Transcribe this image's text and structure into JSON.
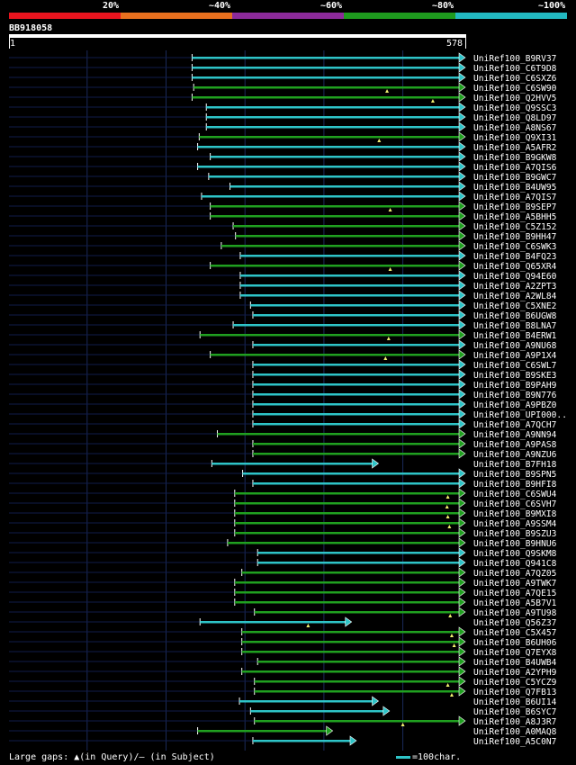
{
  "scale_labels": [
    "20%",
    "~40%",
    "~60%",
    "~80%",
    "~100%"
  ],
  "scale_colors": [
    "#e8141e",
    "#e8701e",
    "#8c2a9a",
    "#1e9a1e",
    "#22b8c0"
  ],
  "colors": {
    "cyan": "#2ec4c8",
    "green": "#20a020",
    "navy": "#101c4a",
    "grid": "#1a2a5a",
    "marker": "#f0f070"
  },
  "query": {
    "name": "BB918058",
    "start": "1",
    "end": "578",
    "length": 578
  },
  "footer": {
    "legend": "Large gaps: ▲(in Query)/— (in Subject)",
    "scale_text": "=100char."
  },
  "chart_data": {
    "type": "alignment",
    "hits": [
      {
        "label": "UniRef100_B9RV37",
        "start": 233,
        "end": 578,
        "color": "cyan",
        "arrow": true
      },
      {
        "label": "UniRef100_C6T9D8",
        "start": 233,
        "end": 578,
        "color": "cyan",
        "arrow": true
      },
      {
        "label": "UniRef100_C6SXZ6",
        "start": 233,
        "end": 578,
        "color": "cyan",
        "arrow": true
      },
      {
        "label": "UniRef100_C6SW90",
        "start": 235,
        "end": 578,
        "color": "green",
        "arrow": true,
        "gap": 480
      },
      {
        "label": "UniRef100_Q2HVV5",
        "start": 233,
        "end": 578,
        "color": "green",
        "arrow": true,
        "gap": 538
      },
      {
        "label": "UniRef100_Q9SSC3",
        "start": 251,
        "end": 578,
        "color": "cyan",
        "arrow": true
      },
      {
        "label": "UniRef100_Q8LD97",
        "start": 251,
        "end": 578,
        "color": "cyan",
        "arrow": true
      },
      {
        "label": "UniRef100_A8NS67",
        "start": 251,
        "end": 578,
        "color": "cyan",
        "arrow": true
      },
      {
        "label": "UniRef100_Q9XI31",
        "start": 242,
        "end": 578,
        "color": "green",
        "arrow": true,
        "gap": 470
      },
      {
        "label": "UniRef100_A5AFR2",
        "start": 240,
        "end": 578,
        "color": "cyan",
        "arrow": true
      },
      {
        "label": "UniRef100_B9GKW8",
        "start": 256,
        "end": 578,
        "color": "cyan",
        "arrow": true
      },
      {
        "label": "UniRef100_A7QIS6",
        "start": 240,
        "end": 578,
        "color": "cyan",
        "arrow": true
      },
      {
        "label": "UniRef100_B9GWC7",
        "start": 254,
        "end": 578,
        "color": "cyan",
        "arrow": true
      },
      {
        "label": "UniRef100_B4UW95",
        "start": 281,
        "end": 578,
        "color": "cyan",
        "arrow": true
      },
      {
        "label": "UniRef100_A7QIS7",
        "start": 245,
        "end": 578,
        "color": "cyan",
        "arrow": true
      },
      {
        "label": "UniRef100_B9SEP7",
        "start": 256,
        "end": 578,
        "color": "green",
        "arrow": true,
        "gap": 484
      },
      {
        "label": "UniRef100_A5BHH5",
        "start": 256,
        "end": 578,
        "color": "green",
        "arrow": true
      },
      {
        "label": "UniRef100_C5Z152",
        "start": 285,
        "end": 578,
        "color": "green",
        "arrow": true
      },
      {
        "label": "UniRef100_B9HH47",
        "start": 288,
        "end": 578,
        "color": "green",
        "arrow": true
      },
      {
        "label": "UniRef100_C6SWK3",
        "start": 270,
        "end": 578,
        "color": "green",
        "arrow": true
      },
      {
        "label": "UniRef100_B4FQ23",
        "start": 294,
        "end": 578,
        "color": "cyan",
        "arrow": true
      },
      {
        "label": "UniRef100_Q65XR4",
        "start": 256,
        "end": 578,
        "color": "green",
        "arrow": true,
        "gap": 484
      },
      {
        "label": "UniRef100_Q94E60",
        "start": 294,
        "end": 578,
        "color": "cyan",
        "arrow": true
      },
      {
        "label": "UniRef100_A2ZPT3",
        "start": 294,
        "end": 578,
        "color": "cyan",
        "arrow": true
      },
      {
        "label": "UniRef100_A2WL84",
        "start": 294,
        "end": 578,
        "color": "cyan",
        "arrow": true
      },
      {
        "label": "UniRef100_C5XNE2",
        "start": 307,
        "end": 578,
        "color": "cyan",
        "arrow": true
      },
      {
        "label": "UniRef100_B6UGW8",
        "start": 310,
        "end": 578,
        "color": "cyan",
        "arrow": true
      },
      {
        "label": "UniRef100_B8LNA7",
        "start": 285,
        "end": 578,
        "color": "cyan",
        "arrow": true
      },
      {
        "label": "UniRef100_B4ERW1",
        "start": 243,
        "end": 578,
        "color": "green",
        "arrow": true,
        "gap": 482
      },
      {
        "label": "UniRef100_A9NU68",
        "start": 310,
        "end": 578,
        "color": "cyan",
        "arrow": true
      },
      {
        "label": "UniRef100_A9P1X4",
        "start": 256,
        "end": 578,
        "color": "green",
        "arrow": true,
        "gap": 478
      },
      {
        "label": "UniRef100_C6SWL7",
        "start": 310,
        "end": 578,
        "color": "cyan",
        "arrow": true
      },
      {
        "label": "UniRef100_B9SKE3",
        "start": 310,
        "end": 578,
        "color": "cyan",
        "arrow": true
      },
      {
        "label": "UniRef100_B9PAH9",
        "start": 310,
        "end": 578,
        "color": "cyan",
        "arrow": true
      },
      {
        "label": "UniRef100_B9N776",
        "start": 310,
        "end": 578,
        "color": "cyan",
        "arrow": true
      },
      {
        "label": "UniRef100_A9PBZ0",
        "start": 310,
        "end": 578,
        "color": "cyan",
        "arrow": true
      },
      {
        "label": "UniRef100_UPI000..",
        "start": 310,
        "end": 578,
        "color": "cyan",
        "arrow": true
      },
      {
        "label": "UniRef100_A7QCH7",
        "start": 310,
        "end": 578,
        "color": "cyan",
        "arrow": true
      },
      {
        "label": "UniRef100_A9NN94",
        "start": 265,
        "end": 578,
        "color": "green",
        "arrow": true
      },
      {
        "label": "UniRef100_A9PAS8",
        "start": 310,
        "end": 578,
        "color": "green",
        "arrow": true
      },
      {
        "label": "UniRef100_A9NZU6",
        "start": 310,
        "end": 578,
        "color": "green",
        "arrow": true
      },
      {
        "label": "UniRef100_B7FH18",
        "start": 258,
        "end": 468,
        "color": "cyan",
        "arrow": true
      },
      {
        "label": "UniRef100_B9SPN5",
        "start": 297,
        "end": 578,
        "color": "cyan",
        "arrow": true
      },
      {
        "label": "UniRef100_B9HFI8",
        "start": 310,
        "end": 578,
        "color": "cyan",
        "arrow": true
      },
      {
        "label": "UniRef100_C6SWU4",
        "start": 287,
        "end": 578,
        "color": "green",
        "arrow": true,
        "gap": 557
      },
      {
        "label": "UniRef100_C6SVH7",
        "start": 287,
        "end": 578,
        "color": "green",
        "arrow": true,
        "gap": 556
      },
      {
        "label": "UniRef100_B9MXI8",
        "start": 287,
        "end": 578,
        "color": "green",
        "arrow": true,
        "gap": 557
      },
      {
        "label": "UniRef100_A9SSM4",
        "start": 287,
        "end": 578,
        "color": "green",
        "arrow": true,
        "gap": 559
      },
      {
        "label": "UniRef100_B9SZU3",
        "start": 287,
        "end": 578,
        "color": "green",
        "arrow": true
      },
      {
        "label": "UniRef100_B9HNU6",
        "start": 278,
        "end": 578,
        "color": "green",
        "arrow": true
      },
      {
        "label": "UniRef100_Q9SKM8",
        "start": 316,
        "end": 578,
        "color": "cyan",
        "arrow": true
      },
      {
        "label": "UniRef100_Q941C8",
        "start": 316,
        "end": 578,
        "color": "cyan",
        "arrow": true
      },
      {
        "label": "UniRef100_A7QZ05",
        "start": 296,
        "end": 578,
        "color": "green",
        "arrow": true
      },
      {
        "label": "UniRef100_A9TWK7",
        "start": 287,
        "end": 578,
        "color": "green",
        "arrow": true
      },
      {
        "label": "UniRef100_A7QE15",
        "start": 287,
        "end": 578,
        "color": "green",
        "arrow": true
      },
      {
        "label": "UniRef100_A5B7V1",
        "start": 287,
        "end": 578,
        "color": "green",
        "arrow": true
      },
      {
        "label": "UniRef100_A9TU98",
        "start": 312,
        "end": 578,
        "color": "green",
        "arrow": true,
        "gap": 560
      },
      {
        "label": "UniRef100_Q56Z37",
        "start": 243,
        "end": 434,
        "color": "cyan",
        "arrow": true,
        "gap": 380
      },
      {
        "label": "UniRef100_C5X457",
        "start": 296,
        "end": 578,
        "color": "green",
        "arrow": true,
        "gap": 562
      },
      {
        "label": "UniRef100_B6UH06",
        "start": 296,
        "end": 578,
        "color": "green",
        "arrow": true,
        "gap": 565
      },
      {
        "label": "UniRef100_Q7EYX8",
        "start": 296,
        "end": 578,
        "color": "green",
        "arrow": true
      },
      {
        "label": "UniRef100_B4UWB4",
        "start": 316,
        "end": 578,
        "color": "green",
        "arrow": true
      },
      {
        "label": "UniRef100_A2YPH9",
        "start": 296,
        "end": 578,
        "color": "green",
        "arrow": true
      },
      {
        "label": "UniRef100_C5YCZ9",
        "start": 312,
        "end": 578,
        "color": "green",
        "arrow": true,
        "gap": 557
      },
      {
        "label": "UniRef100_Q7FB13",
        "start": 312,
        "end": 578,
        "color": "green",
        "arrow": true,
        "gap": 562
      },
      {
        "label": "UniRef100_B6UI14",
        "start": 293,
        "end": 468,
        "color": "cyan",
        "arrow": true
      },
      {
        "label": "UniRef100_B6SYC7",
        "start": 307,
        "end": 482,
        "color": "cyan",
        "arrow": true
      },
      {
        "label": "UniRef100_A8J3R7",
        "start": 312,
        "end": 578,
        "color": "green",
        "arrow": true,
        "gap": 500
      },
      {
        "label": "UniRef100_A0MAQ8",
        "start": 240,
        "end": 410,
        "color": "green",
        "arrow": true
      },
      {
        "label": "UniRef100_A5C0N7",
        "start": 310,
        "end": 440,
        "color": "cyan",
        "arrow": true
      }
    ]
  }
}
